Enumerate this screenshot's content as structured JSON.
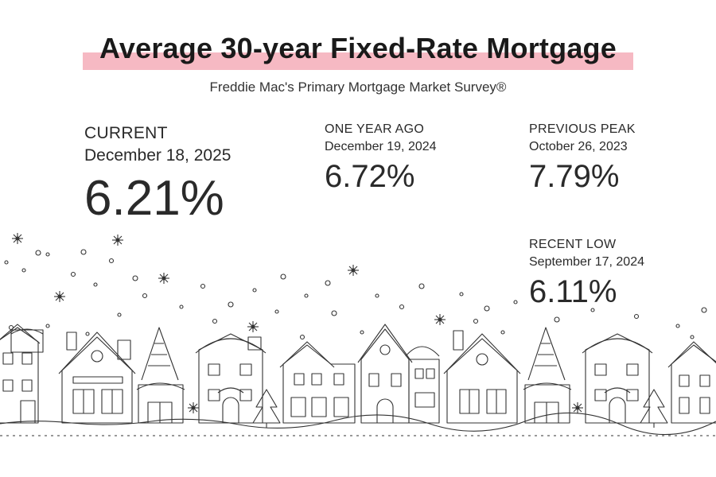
{
  "header": {
    "title": "Average 30-year Fixed-Rate Mortgage",
    "subtitle": "Freddie Mac's Primary Mortgage Market Survey®"
  },
  "stats": {
    "current": {
      "label": "CURRENT",
      "date": "December 18, 2025",
      "value": "6.21%"
    },
    "year_ago": {
      "label": "ONE YEAR AGO",
      "date": "December 19, 2024",
      "value": "6.72%"
    },
    "previous_peak": {
      "label": "PREVIOUS PEAK",
      "date": "October 26, 2023",
      "value": "7.79%"
    },
    "recent_low": {
      "label": "RECENT LOW",
      "date": "September 17, 2024",
      "value": "6.11%"
    }
  },
  "colors": {
    "highlight": "#f6b9c3",
    "text": "#222222",
    "line_art": "#333333"
  },
  "illustration": {
    "subject": "snowy winter village houses with falling snowflakes"
  }
}
